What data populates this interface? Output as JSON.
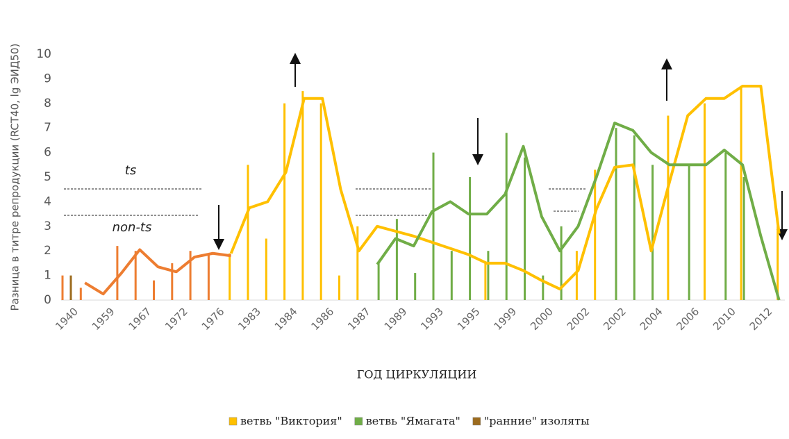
{
  "chart_data": {
    "type": "combo",
    "y_label": "Разница в титре репродукции (RCT40, lg ЭИД50)",
    "x_label": "ГОД ЦИРКУЛЯЦИИ",
    "annotations": [
      "ts",
      "non-ts"
    ],
    "categories": [
      "1940",
      null,
      "1959",
      null,
      "1967",
      null,
      "1972",
      null,
      "1976",
      null,
      "1983",
      null,
      "1984",
      null,
      "1986",
      null,
      "1987",
      null,
      "1989",
      null,
      "1993",
      null,
      "1995",
      null,
      "1999",
      null,
      "2000",
      null,
      "2002",
      null,
      "2002",
      null,
      "2004",
      null,
      "2006",
      null,
      "2010",
      null,
      "2012",
      null
    ],
    "ylim": [
      0,
      10
    ],
    "yticks": [
      0,
      1,
      2,
      3,
      4,
      5,
      6,
      7,
      8,
      9,
      10
    ],
    "series": [
      {
        "type": "bar",
        "color": "#ed7d31",
        "values": [
          1.0,
          0.5,
          null,
          2.2,
          2.0,
          0.8,
          1.5,
          2.0,
          1.9,
          null,
          null,
          null,
          null,
          null,
          null,
          null,
          null,
          null,
          null,
          null,
          null,
          null,
          null,
          null,
          null,
          null,
          null,
          null,
          null,
          null,
          null,
          null,
          null,
          null,
          null,
          null,
          null,
          null,
          null,
          null
        ]
      },
      {
        "type": "bar",
        "name": "ветвь \"Виктория\"",
        "color": "#ffc000",
        "values": [
          null,
          null,
          null,
          null,
          null,
          null,
          null,
          null,
          null,
          1.9,
          5.5,
          2.5,
          8.0,
          8.5,
          8.0,
          1.0,
          3.0,
          null,
          null,
          null,
          null,
          null,
          null,
          1.5,
          null,
          null,
          null,
          null,
          2.0,
          5.3,
          null,
          null,
          null,
          7.5,
          null,
          8.0,
          null,
          8.7,
          null,
          3.0
        ]
      },
      {
        "type": "bar",
        "name": "ветвь \"Ямагата\"",
        "color": "#70ad47",
        "values": [
          null,
          null,
          null,
          null,
          null,
          null,
          null,
          null,
          null,
          null,
          null,
          null,
          null,
          null,
          null,
          null,
          null,
          1.5,
          3.3,
          1.1,
          6.0,
          2.0,
          5.0,
          2.0,
          6.8,
          5.8,
          1.0,
          3.0,
          null,
          null,
          7.0,
          6.7,
          5.5,
          null,
          5.5,
          null,
          6.0,
          5.0,
          null,
          null
        ]
      },
      {
        "type": "bar",
        "name": "\"ранние\" изоляты",
        "color": "#9c6b1e",
        "values": [
          1.0,
          null,
          null,
          null,
          null,
          null,
          null,
          null,
          null,
          null,
          null,
          null,
          null,
          null,
          null,
          null,
          null,
          null,
          null,
          null,
          null,
          null,
          null,
          null,
          null,
          null,
          null,
          null,
          null,
          null,
          null,
          null,
          null,
          null,
          null,
          null,
          null,
          null,
          null,
          null
        ]
      },
      {
        "type": "line",
        "color": "#ed7d31",
        "values": [
          null,
          0.7,
          0.25,
          1.1,
          2.05,
          1.35,
          1.15,
          1.75,
          1.9,
          1.8,
          null,
          null,
          null,
          null,
          null,
          null,
          null,
          null,
          null,
          null,
          null,
          null,
          null,
          null,
          null,
          null,
          null,
          null,
          null,
          null,
          null,
          null,
          null,
          null,
          null,
          null,
          null,
          null,
          null,
          null
        ]
      },
      {
        "type": "line",
        "color": "#ffc000",
        "values": [
          null,
          null,
          null,
          null,
          null,
          null,
          null,
          null,
          null,
          1.9,
          3.75,
          4.0,
          5.2,
          8.2,
          8.2,
          4.5,
          2.0,
          3.0,
          2.8,
          2.6,
          2.35,
          2.1,
          1.85,
          1.5,
          1.5,
          1.2,
          0.8,
          0.45,
          1.2,
          3.7,
          5.4,
          5.5,
          2.0,
          4.8,
          7.5,
          8.2,
          8.2,
          8.7,
          8.7,
          2.7
        ]
      },
      {
        "type": "line",
        "color": "#70ad47",
        "values": [
          null,
          null,
          null,
          null,
          null,
          null,
          null,
          null,
          null,
          null,
          null,
          null,
          null,
          null,
          null,
          null,
          null,
          1.45,
          2.5,
          2.2,
          3.6,
          4.0,
          3.5,
          3.5,
          4.3,
          6.25,
          3.4,
          2.0,
          3.0,
          5.0,
          7.2,
          6.9,
          6.0,
          5.5,
          5.5,
          5.5,
          6.1,
          5.5,
          2.6,
          0
        ]
      }
    ]
  }
}
